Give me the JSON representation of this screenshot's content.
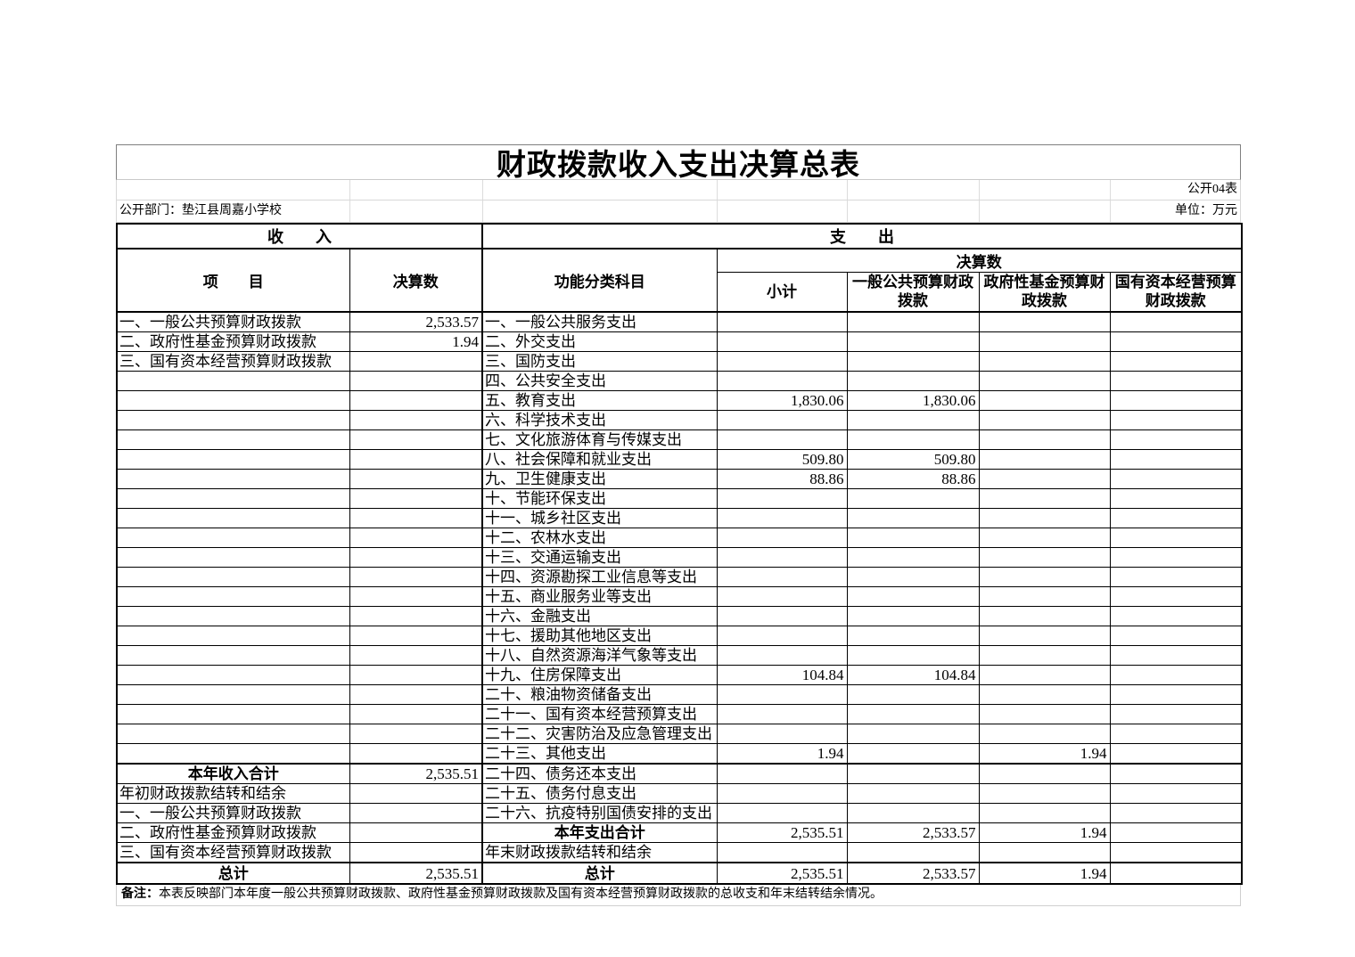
{
  "header": {
    "title": "财政拨款收入支出决算总表",
    "form_no": "公开04表",
    "department": "公开部门：垫江县周嘉小学校",
    "unit": "单位：万元"
  },
  "table": {
    "section_income": "收　　入",
    "section_expense": "支　　出",
    "col_item": "项　　目",
    "col_final_income": "决算数",
    "col_func": "功能分类科目",
    "col_final_group": "决算数",
    "col_subtotal": "小计",
    "col_general": "一般公共预算财政拨款",
    "col_govfund": "政府性基金预算财政拨款",
    "col_statecap": "国有资本经营预算财政拨款"
  },
  "rows": [
    {
      "income": "一、一般公共预算财政拨款",
      "income_val": "2,533.57",
      "expense": "一、一般公共服务支出",
      "sub": "",
      "gen": "",
      "gov": "",
      "state": ""
    },
    {
      "income": "二、政府性基金预算财政拨款",
      "income_val": "1.94",
      "expense": "二、外交支出",
      "sub": "",
      "gen": "",
      "gov": "",
      "state": ""
    },
    {
      "income": "三、国有资本经营预算财政拨款",
      "income_val": "",
      "expense": "三、国防支出",
      "sub": "",
      "gen": "",
      "gov": "",
      "state": ""
    },
    {
      "income": "",
      "income_val": "",
      "expense": "四、公共安全支出",
      "sub": "",
      "gen": "",
      "gov": "",
      "state": ""
    },
    {
      "income": "",
      "income_val": "",
      "expense": "五、教育支出",
      "sub": "1,830.06",
      "gen": "1,830.06",
      "gov": "",
      "state": ""
    },
    {
      "income": "",
      "income_val": "",
      "expense": "六、科学技术支出",
      "sub": "",
      "gen": "",
      "gov": "",
      "state": ""
    },
    {
      "income": "",
      "income_val": "",
      "expense": "七、文化旅游体育与传媒支出",
      "sub": "",
      "gen": "",
      "gov": "",
      "state": ""
    },
    {
      "income": "",
      "income_val": "",
      "expense": "八、社会保障和就业支出",
      "sub": "509.80",
      "gen": "509.80",
      "gov": "",
      "state": ""
    },
    {
      "income": "",
      "income_val": "",
      "expense": "九、卫生健康支出",
      "sub": "88.86",
      "gen": "88.86",
      "gov": "",
      "state": ""
    },
    {
      "income": "",
      "income_val": "",
      "expense": "十、节能环保支出",
      "sub": "",
      "gen": "",
      "gov": "",
      "state": ""
    },
    {
      "income": "",
      "income_val": "",
      "expense": "十一、城乡社区支出",
      "sub": "",
      "gen": "",
      "gov": "",
      "state": ""
    },
    {
      "income": "",
      "income_val": "",
      "expense": "十二、农林水支出",
      "sub": "",
      "gen": "",
      "gov": "",
      "state": ""
    },
    {
      "income": "",
      "income_val": "",
      "expense": "十三、交通运输支出",
      "sub": "",
      "gen": "",
      "gov": "",
      "state": ""
    },
    {
      "income": "",
      "income_val": "",
      "expense": "十四、资源勘探工业信息等支出",
      "sub": "",
      "gen": "",
      "gov": "",
      "state": ""
    },
    {
      "income": "",
      "income_val": "",
      "expense": "十五、商业服务业等支出",
      "sub": "",
      "gen": "",
      "gov": "",
      "state": ""
    },
    {
      "income": "",
      "income_val": "",
      "expense": "十六、金融支出",
      "sub": "",
      "gen": "",
      "gov": "",
      "state": ""
    },
    {
      "income": "",
      "income_val": "",
      "expense": "十七、援助其他地区支出",
      "sub": "",
      "gen": "",
      "gov": "",
      "state": ""
    },
    {
      "income": "",
      "income_val": "",
      "expense": "十八、自然资源海洋气象等支出",
      "sub": "",
      "gen": "",
      "gov": "",
      "state": ""
    },
    {
      "income": "",
      "income_val": "",
      "expense": "十九、住房保障支出",
      "sub": "104.84",
      "gen": "104.84",
      "gov": "",
      "state": ""
    },
    {
      "income": "",
      "income_val": "",
      "expense": "二十、粮油物资储备支出",
      "sub": "",
      "gen": "",
      "gov": "",
      "state": ""
    },
    {
      "income": "",
      "income_val": "",
      "expense": "二十一、国有资本经营预算支出",
      "sub": "",
      "gen": "",
      "gov": "",
      "state": ""
    },
    {
      "income": "",
      "income_val": "",
      "expense": "二十二、灾害防治及应急管理支出",
      "sub": "",
      "gen": "",
      "gov": "",
      "state": ""
    },
    {
      "income": "",
      "income_val": "",
      "expense": "二十三、其他支出",
      "sub": "1.94",
      "gen": "",
      "gov": "1.94",
      "state": ""
    },
    {
      "income": "本年收入合计",
      "income_val": "2,535.51",
      "income_total": true,
      "section_start": true,
      "expense": "二十四、债务还本支出",
      "sub": "",
      "gen": "",
      "gov": "",
      "state": ""
    },
    {
      "income": "年初财政拨款结转和结余",
      "income_val": "",
      "expense": "二十五、债务付息支出",
      "sub": "",
      "gen": "",
      "gov": "",
      "state": ""
    },
    {
      "income": "一、一般公共预算财政拨款",
      "income_val": "",
      "expense": "二十六、抗疫特别国债安排的支出",
      "sub": "",
      "gen": "",
      "gov": "",
      "state": ""
    },
    {
      "income": "二、政府性基金预算财政拨款",
      "income_val": "",
      "expense": "本年支出合计",
      "expense_total": true,
      "sub": "2,535.51",
      "gen": "2,533.57",
      "gov": "1.94",
      "state": ""
    },
    {
      "income": "三、国有资本经营预算财政拨款",
      "income_val": "",
      "expense": "年末财政拨款结转和结余",
      "sub": "",
      "gen": "",
      "gov": "",
      "state": ""
    },
    {
      "income": "总计",
      "income_val": "2,535.51",
      "income_total": true,
      "section_start": true,
      "expense": "总计",
      "expense_total": true,
      "sub": "2,535.51",
      "gen": "2,533.57",
      "gov": "1.94",
      "state": ""
    }
  ],
  "note": {
    "label": "备注：",
    "text": "本表反映部门本年度一般公共预算财政拨款、政府性基金预算财政拨款及国有资本经营预算财政拨款的总收支和年末结转结余情况。"
  }
}
